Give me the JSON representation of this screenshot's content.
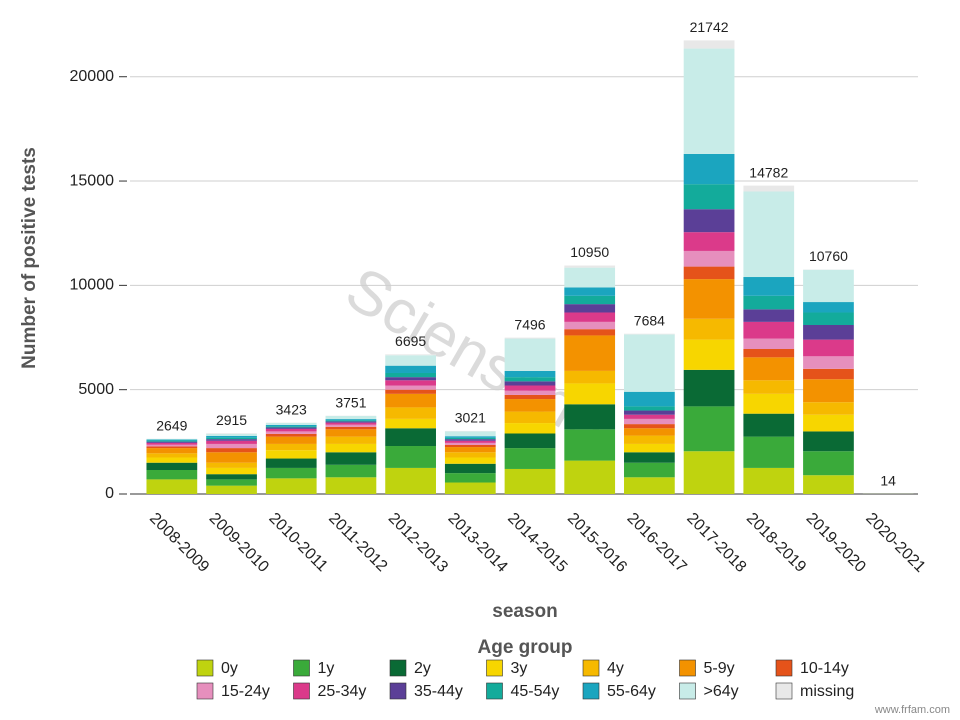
{
  "chart_data": {
    "type": "stacked-bar",
    "ylabel": "Number of positive tests",
    "xlabel": "season",
    "legend_title": "Age group",
    "watermark": "Sciensano",
    "credit": "www.frfam.com",
    "categories": [
      "2008-2009",
      "2009-2010",
      "2010-2011",
      "2011-2012",
      "2012-2013",
      "2013-2014",
      "2014-2015",
      "2015-2016",
      "2016-2017",
      "2017-2018",
      "2018-2019",
      "2019-2020",
      "2020-2021"
    ],
    "totals": [
      2649,
      2915,
      3423,
      3751,
      6695,
      3021,
      7496,
      10950,
      7684,
      21742,
      14782,
      10760,
      14
    ],
    "ylim": [
      0,
      22000
    ],
    "yticks": [
      0,
      5000,
      10000,
      15000,
      20000
    ],
    "grid": true,
    "series": [
      {
        "name": "0y",
        "color": "#bfd30f",
        "values": [
          700,
          400,
          750,
          800,
          1250,
          550,
          1200,
          1600,
          800,
          2050,
          1250,
          900,
          2
        ]
      },
      {
        "name": "1y",
        "color": "#3aaa3a",
        "values": [
          450,
          300,
          500,
          600,
          1050,
          450,
          1000,
          1500,
          700,
          2150,
          1500,
          1150,
          2
        ]
      },
      {
        "name": "2y",
        "color": "#0a6a35",
        "values": [
          350,
          250,
          450,
          600,
          850,
          450,
          700,
          1200,
          500,
          1750,
          1100,
          950,
          1
        ]
      },
      {
        "name": "3y",
        "color": "#f7d600",
        "values": [
          250,
          300,
          400,
          400,
          450,
          300,
          500,
          1000,
          400,
          1450,
          950,
          800,
          1
        ]
      },
      {
        "name": "4y",
        "color": "#f6b900",
        "values": [
          200,
          250,
          300,
          350,
          550,
          250,
          550,
          600,
          400,
          1000,
          650,
          600,
          1
        ]
      },
      {
        "name": "5-9y",
        "color": "#f39200",
        "values": [
          250,
          500,
          350,
          350,
          650,
          250,
          600,
          1700,
          350,
          1900,
          1100,
          1100,
          1
        ]
      },
      {
        "name": "10-14y",
        "color": "#e5531a",
        "values": [
          80,
          200,
          130,
          120,
          200,
          100,
          200,
          300,
          200,
          600,
          400,
          500,
          0
        ]
      },
      {
        "name": "15-24y",
        "color": "#e68fbd",
        "values": [
          80,
          200,
          120,
          100,
          200,
          100,
          200,
          350,
          250,
          750,
          500,
          600,
          1
        ]
      },
      {
        "name": "25-34y",
        "color": "#db3a8a",
        "values": [
          90,
          150,
          120,
          100,
          250,
          100,
          250,
          450,
          200,
          900,
          800,
          800,
          1
        ]
      },
      {
        "name": "35-44y",
        "color": "#5b3f97",
        "values": [
          60,
          80,
          70,
          60,
          150,
          80,
          200,
          400,
          200,
          1100,
          600,
          700,
          1
        ]
      },
      {
        "name": "45-54y",
        "color": "#13ab9b",
        "values": [
          50,
          70,
          60,
          50,
          200,
          60,
          200,
          400,
          200,
          1200,
          650,
          600,
          1
        ]
      },
      {
        "name": "55-64y",
        "color": "#1ba5bf",
        "values": [
          50,
          80,
          60,
          60,
          350,
          80,
          300,
          400,
          700,
          1450,
          900,
          500,
          1
        ]
      },
      {
        "name": ">64y",
        "color": "#c8ece8",
        "values": [
          30,
          100,
          100,
          150,
          500,
          230,
          1550,
          950,
          2750,
          5050,
          4100,
          1550,
          1
        ]
      },
      {
        "name": "missing",
        "color": "#e8e8e8",
        "values": [
          9,
          35,
          13,
          11,
          45,
          21,
          46,
          100,
          34,
          392,
          282,
          10,
          0
        ]
      }
    ]
  }
}
